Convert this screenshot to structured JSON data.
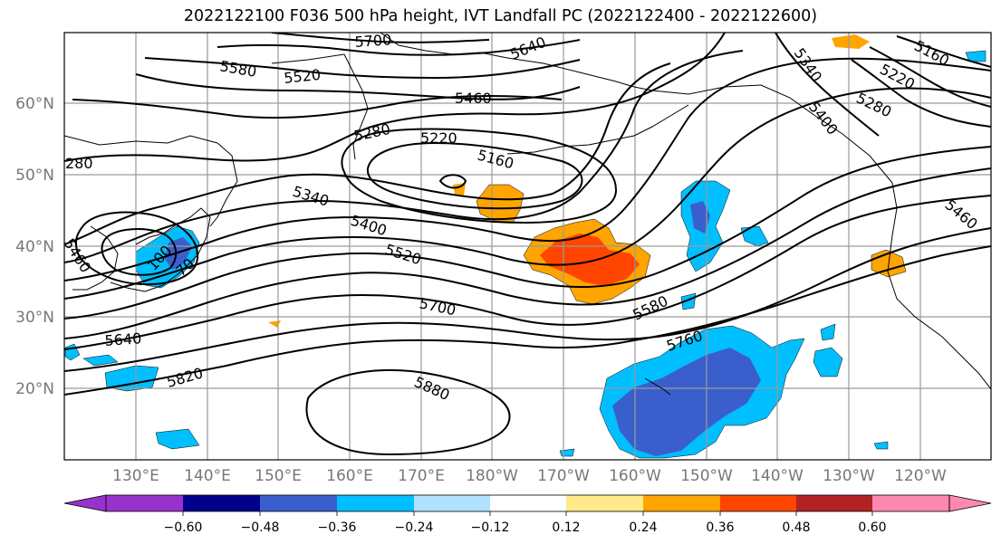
{
  "title": "2022122100 F036 500 hPa height, IVT Landfall PC (2022122400 - 2022122600)",
  "map": {
    "lat_ticks": [
      "60°N",
      "50°N",
      "40°N",
      "30°N",
      "20°N"
    ],
    "lon_ticks": [
      "130°E",
      "140°E",
      "150°E",
      "160°E",
      "170°E",
      "180°W",
      "170°W",
      "160°W",
      "150°W",
      "140°W",
      "130°W",
      "120°W"
    ],
    "contour_labels": [
      {
        "text": "5700",
        "id": "5700-north"
      },
      {
        "text": "5640",
        "id": "5640-north"
      },
      {
        "text": "5580",
        "id": "5580-north"
      },
      {
        "text": "5520",
        "id": "5520-north"
      },
      {
        "text": "5460",
        "id": "5460-north"
      },
      {
        "text": "5280",
        "id": "5280-north"
      },
      {
        "text": "5220",
        "id": "5220-low"
      },
      {
        "text": "5160",
        "id": "5160-low"
      },
      {
        "text": "5340",
        "id": "5340-trough"
      },
      {
        "text": "5400",
        "id": "5400-trough"
      },
      {
        "text": "5520",
        "id": "5520-trough"
      },
      {
        "text": "5700",
        "id": "5700-mid"
      },
      {
        "text": "5580",
        "id": "5580-east"
      },
      {
        "text": "5760",
        "id": "5760-east"
      },
      {
        "text": "5640",
        "id": "5640-west"
      },
      {
        "text": "5820",
        "id": "5820-west"
      },
      {
        "text": "5880",
        "id": "5880-high"
      },
      {
        "text": "280",
        "id": "5280-edge"
      },
      {
        "text": "5460",
        "id": "5460-japan"
      },
      {
        "text": "100",
        "id": "5100-japan"
      },
      {
        "text": "70",
        "id": "5x70-japan"
      },
      {
        "text": "5340",
        "id": "5340-ne"
      },
      {
        "text": "5160",
        "id": "5160-ne"
      },
      {
        "text": "5220",
        "id": "5220-ne"
      },
      {
        "text": "5280",
        "id": "5280-ne"
      },
      {
        "text": "5400",
        "id": "5400-ne"
      },
      {
        "text": "5460",
        "id": "5460-ne"
      }
    ]
  },
  "colorbar": {
    "ticks": [
      "−0.60",
      "−0.48",
      "−0.36",
      "−0.24",
      "−0.12",
      "0.12",
      "0.24",
      "0.36",
      "0.48",
      "0.60"
    ],
    "colors": [
      "#9932cc",
      "#00008b",
      "#3a5fcd",
      "#00bfff",
      "#b0e2ff",
      "#ffffff",
      "#ffe98a",
      "#ffa500",
      "#ff4500",
      "#b22222",
      "#ff88b0"
    ]
  },
  "colors": {
    "negative_dark": "#3a5fcd",
    "negative_mid": "#00bfff",
    "positive_mid": "#ffa500",
    "positive_strong": "#ff4500"
  }
}
